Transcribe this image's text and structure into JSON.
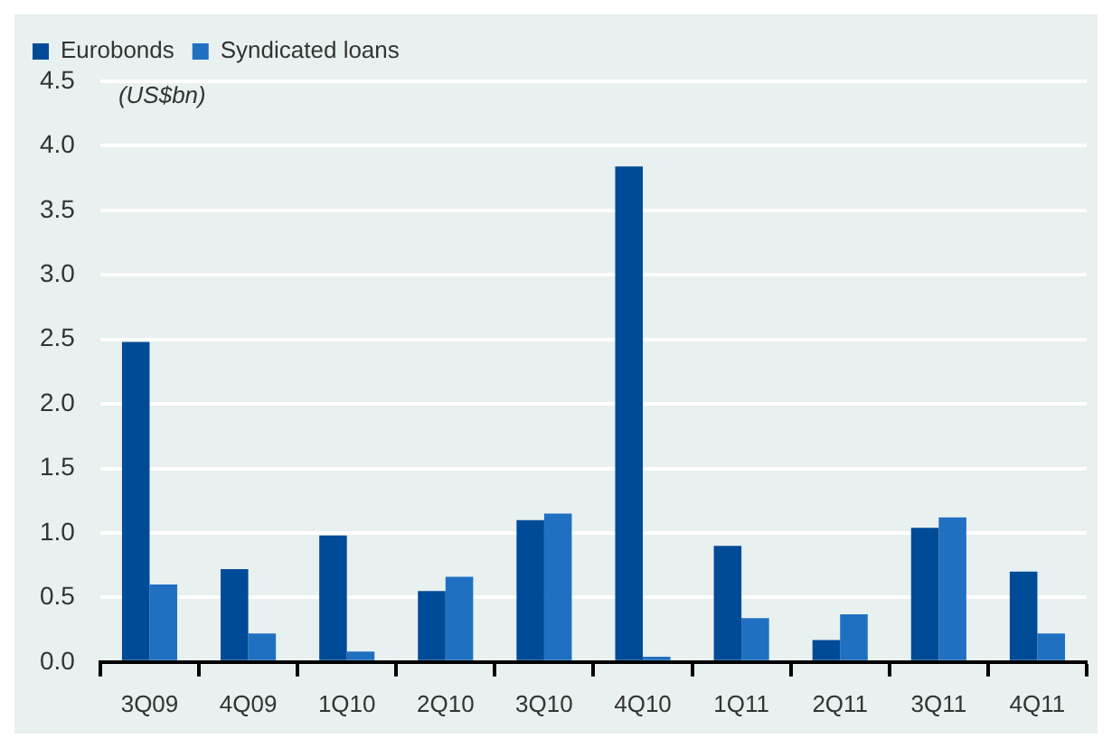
{
  "chart_data": {
    "type": "bar",
    "categories": [
      "3Q09",
      "4Q09",
      "1Q10",
      "2Q10",
      "3Q10",
      "4Q10",
      "1Q11",
      "2Q11",
      "3Q11",
      "4Q11"
    ],
    "series": [
      {
        "name": "Eurobonds",
        "color": "#004b97",
        "values": [
          2.48,
          0.72,
          0.98,
          0.55,
          1.1,
          3.84,
          0.9,
          0.17,
          1.04,
          0.7
        ]
      },
      {
        "name": "Syndicated loans",
        "color": "#1f70c1",
        "values": [
          0.6,
          0.22,
          0.08,
          0.66,
          1.15,
          0.04,
          0.34,
          0.37,
          1.12,
          0.22
        ]
      }
    ],
    "ylim": [
      0,
      4.5
    ],
    "yticks": [
      {
        "value": 0,
        "label": "0.0"
      },
      0.5,
      {
        "value": 1,
        "label": "1.0"
      },
      1.5,
      {
        "value": 2,
        "label": "2.0"
      },
      2.5,
      {
        "value": 3,
        "label": "3.0"
      },
      3.5,
      {
        "value": 4,
        "label": "4.0"
      },
      4.5
    ],
    "grid": "y",
    "legend": "top left",
    "annotations": [
      "(US$bn)"
    ]
  }
}
